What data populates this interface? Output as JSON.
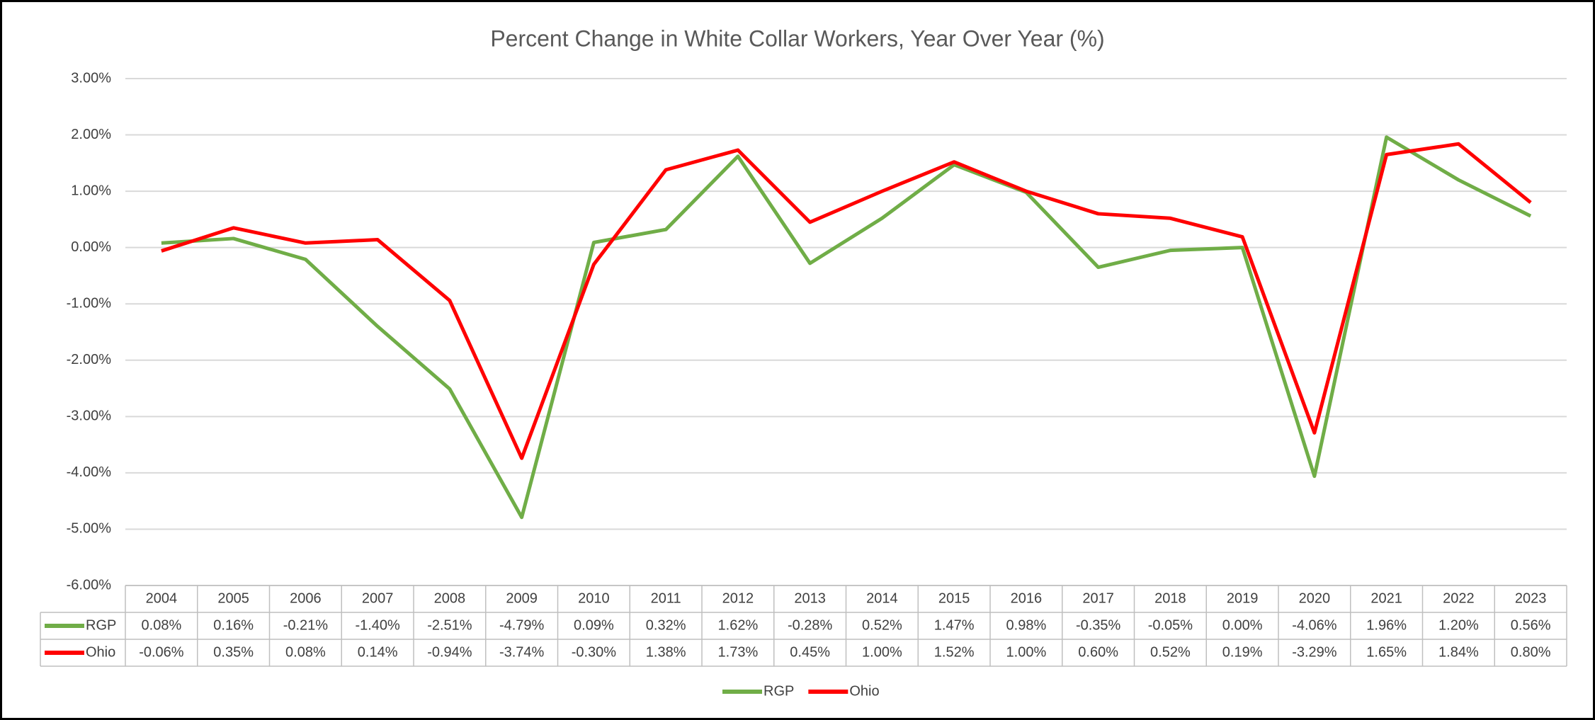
{
  "chart_data": {
    "type": "line",
    "title": "Percent Change in White Collar Workers, Year Over Year (%)",
    "categories": [
      "2004",
      "2005",
      "2006",
      "2007",
      "2008",
      "2009",
      "2010",
      "2011",
      "2012",
      "2013",
      "2014",
      "2015",
      "2016",
      "2017",
      "2018",
      "2019",
      "2020",
      "2021",
      "2022",
      "2023"
    ],
    "series": [
      {
        "name": "RGP",
        "color": "#70ad47",
        "values": [
          0.08,
          0.16,
          -0.21,
          -1.4,
          -2.51,
          -4.79,
          0.09,
          0.32,
          1.62,
          -0.28,
          0.52,
          1.47,
          0.98,
          -0.35,
          -0.05,
          0.0,
          -4.06,
          1.96,
          1.2,
          0.56
        ],
        "value_labels": [
          "0.08%",
          "0.16%",
          "-0.21%",
          "-1.40%",
          "-2.51%",
          "-4.79%",
          "0.09%",
          "0.32%",
          "1.62%",
          "-0.28%",
          "0.52%",
          "1.47%",
          "0.98%",
          "-0.35%",
          "-0.05%",
          "0.00%",
          "-4.06%",
          "1.96%",
          "1.20%",
          "0.56%"
        ]
      },
      {
        "name": "Ohio",
        "color": "#ff0000",
        "values": [
          -0.06,
          0.35,
          0.08,
          0.14,
          -0.94,
          -3.74,
          -0.3,
          1.38,
          1.73,
          0.45,
          1.0,
          1.52,
          1.0,
          0.6,
          0.52,
          0.19,
          -3.29,
          1.65,
          1.84,
          0.8
        ],
        "value_labels": [
          "-0.06%",
          "0.35%",
          "0.08%",
          "0.14%",
          "-0.94%",
          "-3.74%",
          "-0.30%",
          "1.38%",
          "1.73%",
          "0.45%",
          "1.00%",
          "1.52%",
          "1.00%",
          "0.60%",
          "0.52%",
          "0.19%",
          "-3.29%",
          "1.65%",
          "1.84%",
          "0.80%"
        ]
      }
    ],
    "ylim": [
      -6,
      3
    ],
    "yticks": [
      {
        "value": -6,
        "label": "-6.00%"
      },
      {
        "value": -5,
        "label": "-5.00%"
      },
      {
        "value": -4,
        "label": "-4.00%"
      },
      {
        "value": -3,
        "label": "-3.00%"
      },
      {
        "value": -2,
        "label": "-2.00%"
      },
      {
        "value": -1,
        "label": "-1.00%"
      },
      {
        "value": 0,
        "label": "0.00%"
      },
      {
        "value": 1,
        "label": "1.00%"
      },
      {
        "value": 2,
        "label": "2.00%"
      },
      {
        "value": 3,
        "label": "3.00%"
      }
    ],
    "grid": true,
    "legend": "bottom",
    "data_table": true
  }
}
